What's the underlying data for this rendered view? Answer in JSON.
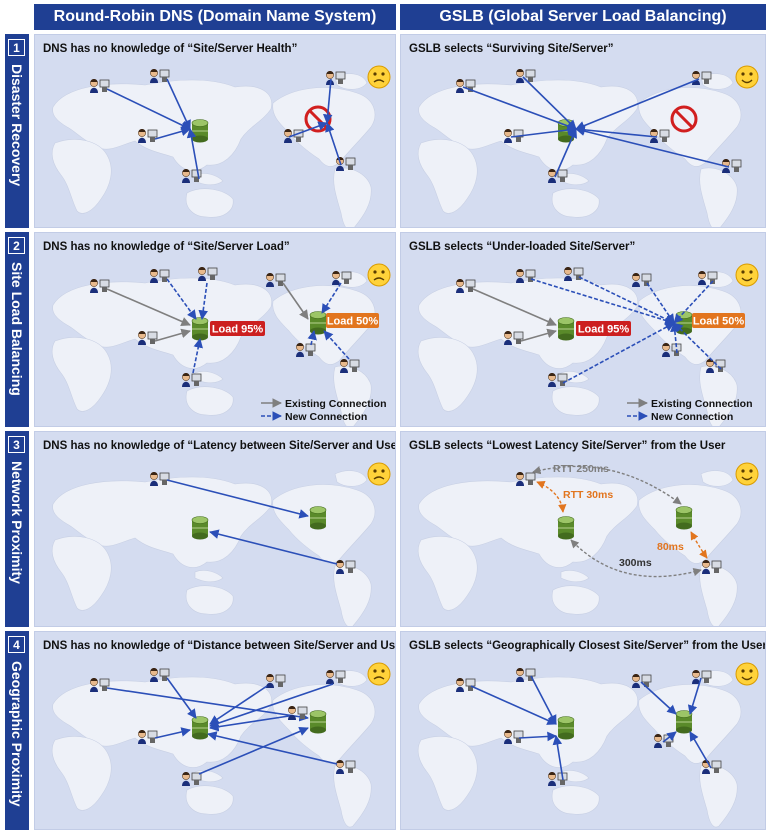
{
  "header": {
    "left": "Round-Robin DNS (Domain Name System)",
    "right": "GSLB (Global Server Load Balancing)"
  },
  "colors": {
    "header_bg": "#1f3f93",
    "panel_bg": "#d4dcf0",
    "map": "#eef1f8",
    "arrow": "#2b4fb8",
    "existing": "#7f7f7f",
    "orange": "#e2751e",
    "red_badge": "#cc1f1f",
    "server": "#5a8a2a"
  },
  "rows": [
    {
      "num": "1",
      "title": "Disaster Recovery",
      "left_caption": "DNS has no knowledge of “Site/Server Health”",
      "right_caption": "GSLB selects “Surviving Site/Server”"
    },
    {
      "num": "2",
      "title": "Site Load Balancing",
      "left_caption": "DNS has no knowledge of “Site/Server Load”",
      "right_caption": "GSLB selects “Under-loaded Site/Server”",
      "load_asia": "Load 95%",
      "load_us": "Load 50%",
      "legend_existing": "Existing Connection",
      "legend_new": "New Connection"
    },
    {
      "num": "3",
      "title": "Network Proximity",
      "left_caption": "DNS has no knowledge of “Latency between Site/Server and User”",
      "right_caption": "GSLB selects “Lowest Latency Site/Server” from the User",
      "rtt_250": "RTT 250ms",
      "rtt_30": "RTT 30ms",
      "lat_80": "80ms",
      "lat_300": "300ms"
    },
    {
      "num": "4",
      "title": "Geographic Proximity",
      "left_caption": "DNS has no knowledge of “Distance between Site/Server and User”",
      "right_caption": "GSLB selects “Geographically Closest Site/Server” from the User"
    }
  ]
}
